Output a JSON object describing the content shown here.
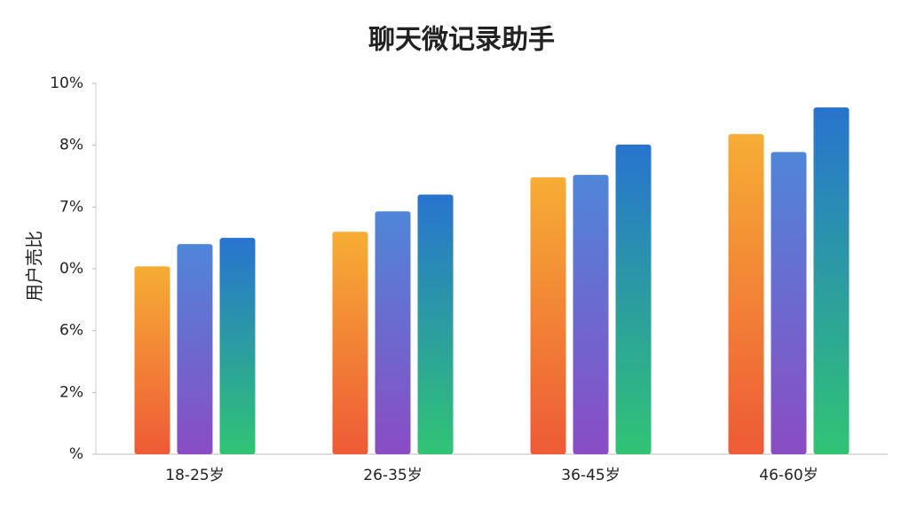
{
  "chart_data": {
    "type": "bar",
    "title": "聊天微记录助手",
    "y_label": "用户売比",
    "categories": [
      "18-25岁",
      "26-35岁",
      "36-45岁",
      "46-60岁"
    ],
    "series": [
      {
        "color": "#f5a030",
        "gradient": [
          "#f6ad35",
          "#ee5a36"
        ],
        "values": [
          3.04,
          3.6,
          4.48,
          5.18
        ]
      },
      {
        "color": "#5a7fd8",
        "gradient": [
          "#4f86d8",
          "#8a4cc4"
        ],
        "values": [
          3.4,
          3.93,
          4.52,
          4.89
        ]
      },
      {
        "color": "#2a78cc",
        "gradient": [
          "#2774cf",
          "#30c474"
        ],
        "values": [
          3.5,
          4.2,
          5.01,
          5.61
        ]
      }
    ],
    "ylim": [
      0,
      6
    ],
    "yticks": [
      {
        "value": 0,
        "label": "%"
      },
      {
        "value": 1,
        "label": "2%"
      },
      {
        "value": 2,
        "label": "6%"
      },
      {
        "value": 3,
        "label": "0%"
      },
      {
        "value": 4,
        "label": "7%"
      },
      {
        "value": 5,
        "label": "8%"
      },
      {
        "value": 6,
        "label": "10%"
      }
    ],
    "grid": false
  }
}
